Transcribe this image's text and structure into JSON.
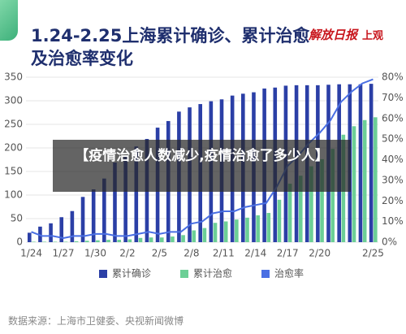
{
  "chart_data": {
    "type": "bar-line",
    "title": "1.24-2.25上海累计确诊、累计治愈及治愈率变化",
    "logos": [
      "解放日报",
      "上观"
    ],
    "banner": "【疫情治愈人数减少,疫情治愈了多少人】",
    "source": "数据来源：上海市卫健委、央视新闻微博",
    "categories": [
      "1/24",
      null,
      null,
      "1/27",
      null,
      null,
      "1/30",
      null,
      null,
      "2/2",
      null,
      null,
      "2/5",
      null,
      null,
      "2/8",
      null,
      null,
      "2/11",
      null,
      null,
      "2/14",
      null,
      null,
      "2/17",
      null,
      null,
      "2/20",
      null,
      null,
      null,
      null,
      "2/25"
    ],
    "series": [
      {
        "name": "累计确诊",
        "color": "#2b3fa6",
        "values": [
          20,
          33,
          40,
          53,
          66,
          96,
          112,
          135,
          169,
          182,
          203,
          219,
          243,
          257,
          277,
          286,
          293,
          299,
          303,
          311,
          315,
          318,
          326,
          328,
          332,
          333,
          333,
          333,
          334,
          335,
          335,
          335,
          336
        ]
      },
      {
        "name": "累计治愈",
        "color": "#6ccf96",
        "values": [
          1,
          1,
          1,
          1,
          2,
          3,
          4,
          5,
          5,
          6,
          9,
          10,
          10,
          12,
          15,
          25,
          30,
          41,
          44,
          48,
          52,
          57,
          62,
          90,
          124,
          141,
          161,
          176,
          198,
          228,
          246,
          259,
          265
        ]
      },
      {
        "name": "治愈率",
        "color": "#4a6fe3",
        "axis": "y2",
        "values": [
          5,
          3,
          3,
          2,
          3,
          3,
          4,
          4,
          3,
          3,
          4,
          5,
          4,
          5,
          5,
          9,
          10,
          14,
          15,
          15,
          17,
          18,
          19,
          27,
          37,
          42,
          48,
          53,
          59,
          68,
          73,
          77,
          79
        ]
      }
    ],
    "ylim": [
      0,
      350
    ],
    "yticks": [
      0,
      50,
      100,
      150,
      200,
      250,
      300,
      350
    ],
    "y2lim": [
      0,
      80
    ],
    "y2ticks": [
      {
        "value": 0,
        "label": "0%"
      },
      {
        "value": 10,
        "label": "10%"
      },
      {
        "value": 20,
        "label": "20%"
      },
      {
        "value": 30,
        "label": "30%"
      },
      {
        "value": 40,
        "label": "40%"
      },
      {
        "value": 50,
        "label": "50%"
      },
      {
        "value": 60,
        "label": "60%"
      },
      {
        "value": 70,
        "label": "70%"
      },
      {
        "value": 80,
        "label": "80%"
      }
    ],
    "grid": true
  }
}
